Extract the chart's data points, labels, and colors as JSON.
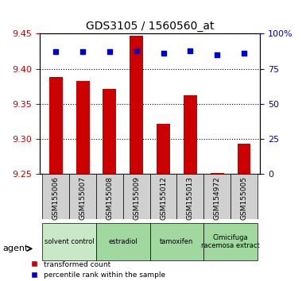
{
  "title": "GDS3105 / 1560560_at",
  "samples": [
    "GSM155006",
    "GSM155007",
    "GSM155008",
    "GSM155009",
    "GSM155012",
    "GSM155013",
    "GSM154972",
    "GSM155005"
  ],
  "red_values": [
    9.388,
    9.383,
    9.372,
    9.447,
    9.322,
    9.362,
    9.252,
    9.293
  ],
  "blue_values": [
    87,
    87,
    87,
    88,
    86,
    88,
    85,
    86
  ],
  "ylim_left": [
    9.25,
    9.45
  ],
  "yticks_left": [
    9.25,
    9.3,
    9.35,
    9.4,
    9.45
  ],
  "yticks_right": [
    0,
    25,
    50,
    75,
    100
  ],
  "ylim_right": [
    0,
    100
  ],
  "groups": [
    {
      "label": "solvent control",
      "indices": [
        0,
        1
      ],
      "color": "#d8f0d8"
    },
    {
      "label": "estradiol",
      "indices": [
        2,
        3
      ],
      "color": "#90ee90"
    },
    {
      "label": "tamoxifen",
      "indices": [
        4,
        5
      ],
      "color": "#90ee90"
    },
    {
      "label": "Cimicifuga\nracemosa extract",
      "indices": [
        6,
        7
      ],
      "color": "#90ee90"
    }
  ],
  "bar_color": "#cc0000",
  "dot_color": "#0000cc",
  "bar_width": 0.5,
  "legend_red": "transformed count",
  "legend_blue": "percentile rank within the sample",
  "agent_label": "agent",
  "ylabel_left_color": "#cc0000",
  "ylabel_right_color": "#0000cc"
}
